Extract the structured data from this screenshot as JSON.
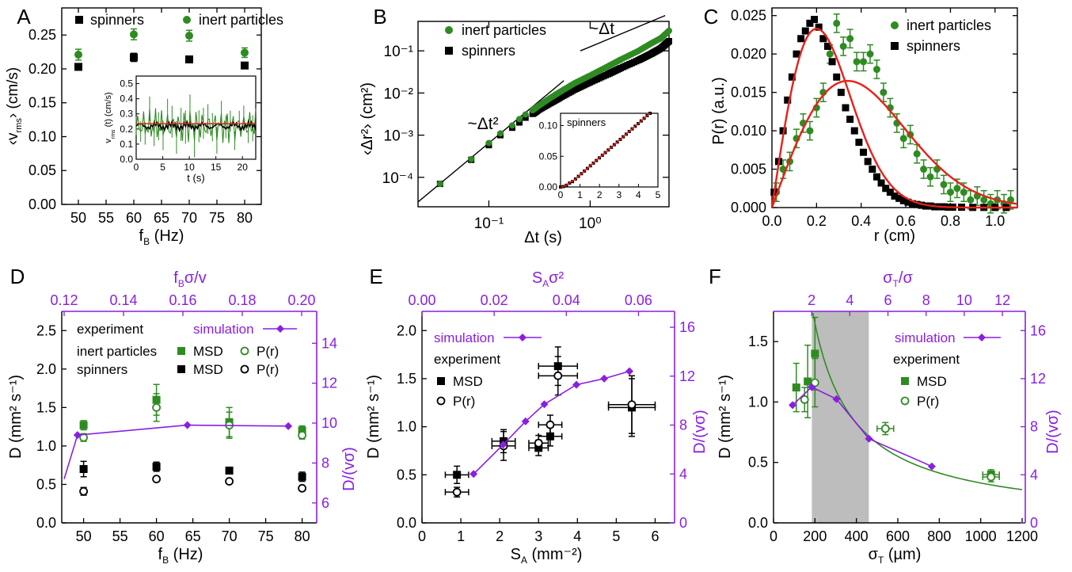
{
  "colors": {
    "green": "#2e8b22",
    "black": "#000000",
    "red": "#e8201a",
    "purple": "#8a1fe0",
    "gray": "#bdbdbd"
  },
  "chart_data": [
    {
      "panel": "A",
      "type": "scatter",
      "xlabel_main": "f",
      "xlabel_sub": "B",
      "xlabel_tail": " (Hz)",
      "ylabel_main": "‹v",
      "ylabel_sub": "rms",
      "ylabel_tail": "› (cm/s)",
      "xlim": [
        47,
        83
      ],
      "ylim": [
        0,
        0.29
      ],
      "xticks": [
        50,
        55,
        60,
        65,
        70,
        75,
        80
      ],
      "yticks": [
        0.0,
        0.05,
        0.1,
        0.15,
        0.2,
        0.25
      ],
      "yticklabels": [
        "0.00",
        "0.05",
        "0.10",
        "0.15",
        "0.20",
        "0.25"
      ],
      "series": [
        {
          "name": "spinners",
          "color": "black",
          "marker": "square",
          "x": [
            50,
            60,
            70,
            80
          ],
          "y": [
            0.203,
            0.217,
            0.214,
            0.205
          ],
          "err": [
            0.004,
            0.006,
            0.004,
            0.004
          ]
        },
        {
          "name": "inert particles",
          "color": "green",
          "marker": "circle",
          "x": [
            50,
            60,
            70,
            80
          ],
          "y": [
            0.221,
            0.251,
            0.249,
            0.224
          ],
          "err": [
            0.008,
            0.008,
            0.008,
            0.007
          ]
        }
      ],
      "inset": {
        "xlabel": "t (s)",
        "ylabel_main": "v",
        "ylabel_sub": "rms",
        "ylabel_tail": " (t) (cm/s)",
        "xlim": [
          0,
          22.5
        ],
        "ylim": [
          0,
          0.55
        ],
        "xticks": [
          0,
          5,
          10,
          15,
          20
        ],
        "yticks": [
          0.0,
          0.1,
          0.2,
          0.3,
          0.4,
          0.5
        ],
        "yticklabels": [
          "0.0",
          "0.1",
          "0.2",
          "0.3",
          "0.4",
          "0.5"
        ],
        "green_mean": 0.22,
        "black_mean": 0.22,
        "red_mean": 0.235
      }
    },
    {
      "panel": "B",
      "type": "scatter",
      "scale": "log-log",
      "xlabel": "Δt (s)",
      "ylabel": "‹Δr²› (cm²)",
      "xlim": [
        0.02,
        6
      ],
      "ylim": [
        2e-05,
        0.5
      ],
      "xtick_labels": [
        "10⁻¹",
        "10⁰"
      ],
      "ytick_labels": [
        "10⁻⁴",
        "10⁻³",
        "10⁻²",
        "10⁻¹"
      ],
      "annotations": [
        "~Δt²",
        "~Δt"
      ],
      "series": [
        {
          "name": "inert particles",
          "color": "green",
          "marker": "circle",
          "x": [
            0.033,
            0.067,
            0.1,
            0.13,
            0.17,
            0.2,
            0.23,
            0.27,
            0.3,
            0.4,
            0.5,
            0.7,
            1.0,
            1.5,
            2,
            3,
            4,
            5,
            6
          ],
          "y": [
            7e-05,
            0.00027,
            0.00065,
            0.0011,
            0.0017,
            0.0024,
            0.0031,
            0.0039,
            0.0047,
            0.0075,
            0.0105,
            0.017,
            0.026,
            0.043,
            0.062,
            0.1,
            0.15,
            0.2,
            0.3
          ]
        },
        {
          "name": "spinners",
          "color": "black",
          "marker": "square",
          "x": [
            0.033,
            0.067,
            0.1,
            0.13,
            0.17,
            0.2,
            0.23,
            0.27,
            0.3,
            0.4,
            0.5,
            0.7,
            1.0,
            1.5,
            2,
            3,
            4,
            5,
            6
          ],
          "y": [
            7e-05,
            0.00026,
            0.00058,
            0.001,
            0.0015,
            0.002,
            0.0026,
            0.0032,
            0.0038,
            0.0057,
            0.0077,
            0.012,
            0.018,
            0.028,
            0.039,
            0.06,
            0.085,
            0.115,
            0.17
          ]
        }
      ],
      "inset": {
        "label": "spinners",
        "xlim": [
          0,
          5
        ],
        "ylim": [
          0,
          0.12
        ],
        "xticks": [
          0,
          1,
          2,
          3,
          4,
          5
        ],
        "yticks": [
          0.0,
          0.05,
          0.1
        ],
        "yticklabels": [
          "0.00",
          "0.05",
          "0.10"
        ]
      }
    },
    {
      "panel": "C",
      "type": "scatter",
      "xlabel": "r (cm)",
      "ylabel": "P(r) (a.u.)",
      "xlim": [
        0,
        1.1
      ],
      "ylim": [
        0,
        0.026
      ],
      "xticks": [
        0.0,
        0.2,
        0.4,
        0.6,
        0.8,
        1.0
      ],
      "xticklabels": [
        "0.0",
        "0.2",
        "0.4",
        "0.6",
        "0.8",
        "1.0"
      ],
      "yticks": [
        0.0,
        0.005,
        0.01,
        0.015,
        0.02,
        0.025
      ],
      "yticklabels": [
        "0.000",
        "0.005",
        "0.010",
        "0.015",
        "0.020",
        "0.025"
      ],
      "fit_params": {
        "spinners_a": 0.2,
        "spinners_peak": 0.0233,
        "inert_a": 0.34,
        "inert_peak": 0.0165
      },
      "series": [
        {
          "name": "inert particles",
          "color": "green",
          "marker": "circle",
          "x": [
            0.02,
            0.05,
            0.08,
            0.11,
            0.14,
            0.17,
            0.2,
            0.23,
            0.26,
            0.29,
            0.32,
            0.35,
            0.38,
            0.41,
            0.44,
            0.47,
            0.5,
            0.53,
            0.56,
            0.59,
            0.62,
            0.65,
            0.68,
            0.71,
            0.74,
            0.77,
            0.8,
            0.83,
            0.86,
            0.89,
            0.92,
            0.95,
            0.98,
            1.01,
            1.04,
            1.07
          ],
          "y": [
            0.002,
            0.005,
            0.006,
            0.009,
            0.011,
            0.01,
            0.013,
            0.015,
            0.02,
            0.024,
            0.021,
            0.022,
            0.019,
            0.019,
            0.02,
            0.018,
            0.015,
            0.013,
            0.011,
            0.009,
            0.0095,
            0.007,
            0.005,
            0.004,
            0.005,
            0.003,
            0.002,
            0.0025,
            0.002,
            0.001,
            0.0015,
            0.001,
            0.0005,
            0.001,
            0.0005,
            0.001
          ]
        },
        {
          "name": "spinners",
          "color": "black",
          "marker": "square",
          "x": [
            0.01,
            0.03,
            0.05,
            0.07,
            0.09,
            0.11,
            0.13,
            0.15,
            0.17,
            0.19,
            0.21,
            0.23,
            0.25,
            0.27,
            0.29,
            0.31,
            0.33,
            0.35,
            0.37,
            0.39,
            0.41,
            0.43,
            0.45,
            0.47,
            0.49,
            0.51,
            0.53,
            0.55,
            0.57,
            0.59,
            0.61,
            0.63,
            0.65,
            0.67,
            0.69,
            0.71,
            0.73,
            0.75,
            0.77,
            0.79,
            0.81,
            0.85,
            0.9,
            0.95,
            1.0,
            1.05
          ],
          "y": [
            0.002,
            0.006,
            0.01,
            0.014,
            0.017,
            0.02,
            0.022,
            0.023,
            0.024,
            0.0245,
            0.0235,
            0.022,
            0.021,
            0.019,
            0.017,
            0.015,
            0.013,
            0.0115,
            0.01,
            0.0085,
            0.0072,
            0.006,
            0.005,
            0.004,
            0.0032,
            0.0025,
            0.002,
            0.0015,
            0.0012,
            0.0009,
            0.0007,
            0.0005,
            0.0004,
            0.0003,
            0.0002,
            0.0002,
            0.0001,
            0.0001,
            0.0001,
            5e-05,
            5e-05,
            5e-05,
            2e-05,
            2e-05,
            1e-05,
            1e-05
          ]
        }
      ]
    },
    {
      "panel": "D",
      "type": "scatter",
      "xlabel_main": "f",
      "xlabel_sub": "B",
      "xlabel_tail": " (Hz)",
      "ylabel": "D (mm² s⁻¹)",
      "top_label_main": "f",
      "top_label_sub": "B",
      "top_label_tail": "σ/v",
      "right_label": "D/(vσ)",
      "xlim": [
        47,
        82
      ],
      "ylim": [
        0,
        2.75
      ],
      "xticks": [
        50,
        55,
        60,
        65,
        70,
        75,
        80
      ],
      "yticks": [
        0.0,
        0.5,
        1.0,
        1.5,
        2.0,
        2.5
      ],
      "yticklabels": [
        "0.0",
        "0.5",
        "1.0",
        "1.5",
        "2.0",
        "2.5"
      ],
      "top_ticks": [
        0.12,
        0.14,
        0.16,
        0.18,
        0.2
      ],
      "top_ticklabels": [
        "0.12",
        "0.14",
        "0.16",
        "0.18",
        "0.20"
      ],
      "top_lim": [
        0.12,
        0.2
      ],
      "right_ticks": [
        6,
        8,
        10,
        12,
        14
      ],
      "right_lim": [
        5.0,
        15.6
      ],
      "legend": {
        "experiment": "experiment",
        "simulation": "simulation",
        "inert": "inert particles",
        "spinners": "spinners",
        "msd": "MSD",
        "pr": "P(r)"
      },
      "series": [
        {
          "name": "inert particles MSD",
          "color": "green",
          "marker": "square",
          "x": [
            50,
            60,
            70,
            80
          ],
          "y": [
            1.27,
            1.6,
            1.31,
            1.2
          ],
          "err": [
            0.06,
            0.2,
            0.19,
            0.06
          ]
        },
        {
          "name": "inert particles P(r)",
          "color": "green",
          "marker": "open-circle",
          "x": [
            50,
            60,
            70,
            80
          ],
          "y": [
            1.11,
            1.5,
            1.27,
            1.14
          ],
          "err": [
            0.05,
            0.18,
            0.17,
            0.05
          ]
        },
        {
          "name": "spinners MSD",
          "color": "black",
          "marker": "square",
          "x": [
            50,
            60,
            70,
            80
          ],
          "y": [
            0.7,
            0.73,
            0.68,
            0.6
          ],
          "err": [
            0.1,
            0.06,
            0.03,
            0.06
          ]
        },
        {
          "name": "spinners P(r)",
          "color": "black",
          "marker": "open-circle",
          "x": [
            50,
            60,
            70,
            80
          ],
          "y": [
            0.41,
            0.57,
            0.54,
            0.45
          ],
          "err": [
            0.05,
            0.03,
            0.02,
            0.02
          ]
        },
        {
          "name": "simulation",
          "color": "purple",
          "marker": "diamond",
          "axis": "top-right",
          "x": [
            0.12,
            0.1245,
            0.1615,
            0.1955
          ],
          "y": [
            7.2,
            9.4,
            9.9,
            9.85
          ]
        }
      ]
    },
    {
      "panel": "E",
      "type": "scatter",
      "xlabel_main": "S",
      "xlabel_sub": "A",
      "xlabel_tail": " (mm⁻²)",
      "ylabel": "D (mm² s⁻¹)",
      "top_label_main": "S",
      "top_label_sub": "A",
      "top_label_tail": "σ²",
      "right_label": "D/(vσ)",
      "xlim": [
        0,
        6.5
      ],
      "ylim": [
        0,
        2.2
      ],
      "xticks": [
        0,
        1,
        2,
        3,
        4,
        5,
        6
      ],
      "yticks": [
        0.0,
        0.5,
        1.0,
        1.5,
        2.0
      ],
      "yticklabels": [
        "0.0",
        "0.5",
        "1.0",
        "1.5",
        "2.0"
      ],
      "top_ticks": [
        0.0,
        0.02,
        0.04,
        0.06
      ],
      "top_ticklabels": [
        "0.00",
        "0.02",
        "0.04",
        "0.06"
      ],
      "top_lim": [
        0.0,
        0.07
      ],
      "right_ticks": [
        0,
        4,
        8,
        12,
        16
      ],
      "right_lim": [
        0,
        17.3
      ],
      "legend": {
        "simulation": "simulation",
        "experiment": "experiment",
        "msd": "MSD",
        "pr": "P(r)"
      },
      "series": [
        {
          "name": "MSD",
          "color": "black",
          "marker": "square",
          "x": [
            0.9,
            2.1,
            3.0,
            3.3,
            3.5,
            5.4
          ],
          "y": [
            0.5,
            0.85,
            0.78,
            0.9,
            1.63,
            1.2
          ],
          "xerr": [
            0.3,
            0.3,
            0.25,
            0.3,
            0.5,
            0.6
          ],
          "yerr": [
            0.09,
            0.12,
            0.08,
            0.1,
            0.2,
            0.3
          ]
        },
        {
          "name": "P(r)",
          "color": "black",
          "marker": "open-circle",
          "x": [
            0.9,
            2.1,
            3.0,
            3.3,
            3.5,
            5.4
          ],
          "y": [
            0.32,
            0.8,
            0.83,
            1.02,
            1.53,
            1.23
          ],
          "xerr": [
            0.3,
            0.3,
            0.25,
            0.3,
            0.5,
            0.6
          ],
          "yerr": [
            0.05,
            0.15,
            0.08,
            0.1,
            0.2,
            0.3
          ]
        },
        {
          "name": "simulation",
          "color": "purple",
          "marker": "diamond",
          "axis": "top-right",
          "x": [
            0.0143,
            0.0225,
            0.0287,
            0.0339,
            0.0428,
            0.0505,
            0.0575
          ],
          "y": [
            4.0,
            6.4,
            8.3,
            9.7,
            11.3,
            11.8,
            12.4
          ]
        }
      ]
    },
    {
      "panel": "F",
      "type": "scatter",
      "xlabel_main": "σ",
      "xlabel_sub": "T",
      "xlabel_tail": " (µm)",
      "ylabel": "D (mm² s⁻¹)",
      "top_label_main": "σ",
      "top_label_sub": "T",
      "top_label_tail": "/σ",
      "right_label": "D/(vσ)",
      "xlim": [
        0,
        1200
      ],
      "ylim": [
        0,
        1.75
      ],
      "xticks": [
        0,
        200,
        400,
        600,
        800,
        1000,
        1200
      ],
      "yticks": [
        0.0,
        0.5,
        1.0,
        1.5
      ],
      "yticklabels": [
        "0.0",
        "0.5",
        "1.0",
        "1.5"
      ],
      "top_ticks": [
        2,
        4,
        6,
        8,
        10,
        12
      ],
      "top_lim": [
        0,
        13.2
      ],
      "right_ticks": [
        0,
        4,
        8,
        12,
        16
      ],
      "right_lim": [
        0,
        17.6
      ],
      "shaded_range": [
        185,
        460
      ],
      "fit_coefficient": 330,
      "legend": {
        "simulation": "simulation",
        "experiment": "experiment",
        "msd": "MSD",
        "pr": "P(r)"
      },
      "series": [
        {
          "name": "MSD",
          "color": "green",
          "marker": "square",
          "x": [
            110,
            165,
            200,
            1050
          ],
          "y": [
            1.12,
            1.17,
            1.4,
            0.4
          ],
          "xerr": [
            10,
            10,
            10,
            40
          ],
          "yerr": [
            0.2,
            0.3,
            0.3,
            0.04
          ]
        },
        {
          "name": "P(r)",
          "color": "green",
          "marker": "open-circle",
          "x": [
            150,
            200,
            540,
            1050
          ],
          "y": [
            1.02,
            1.16,
            0.78,
            0.38
          ],
          "xerr": [
            10,
            10,
            40,
            40
          ],
          "yerr": [
            0.1,
            0.2,
            0.05,
            0.04
          ]
        },
        {
          "name": "simulation",
          "color": "purple",
          "marker": "diamond",
          "axis": "top-right",
          "x": [
            1.0,
            2.0,
            3.3,
            5.0,
            8.3
          ],
          "y": [
            9.8,
            11.3,
            10.3,
            7.0,
            4.7
          ]
        }
      ]
    }
  ],
  "panel_letters": [
    "A",
    "B",
    "C",
    "D",
    "E",
    "F"
  ]
}
